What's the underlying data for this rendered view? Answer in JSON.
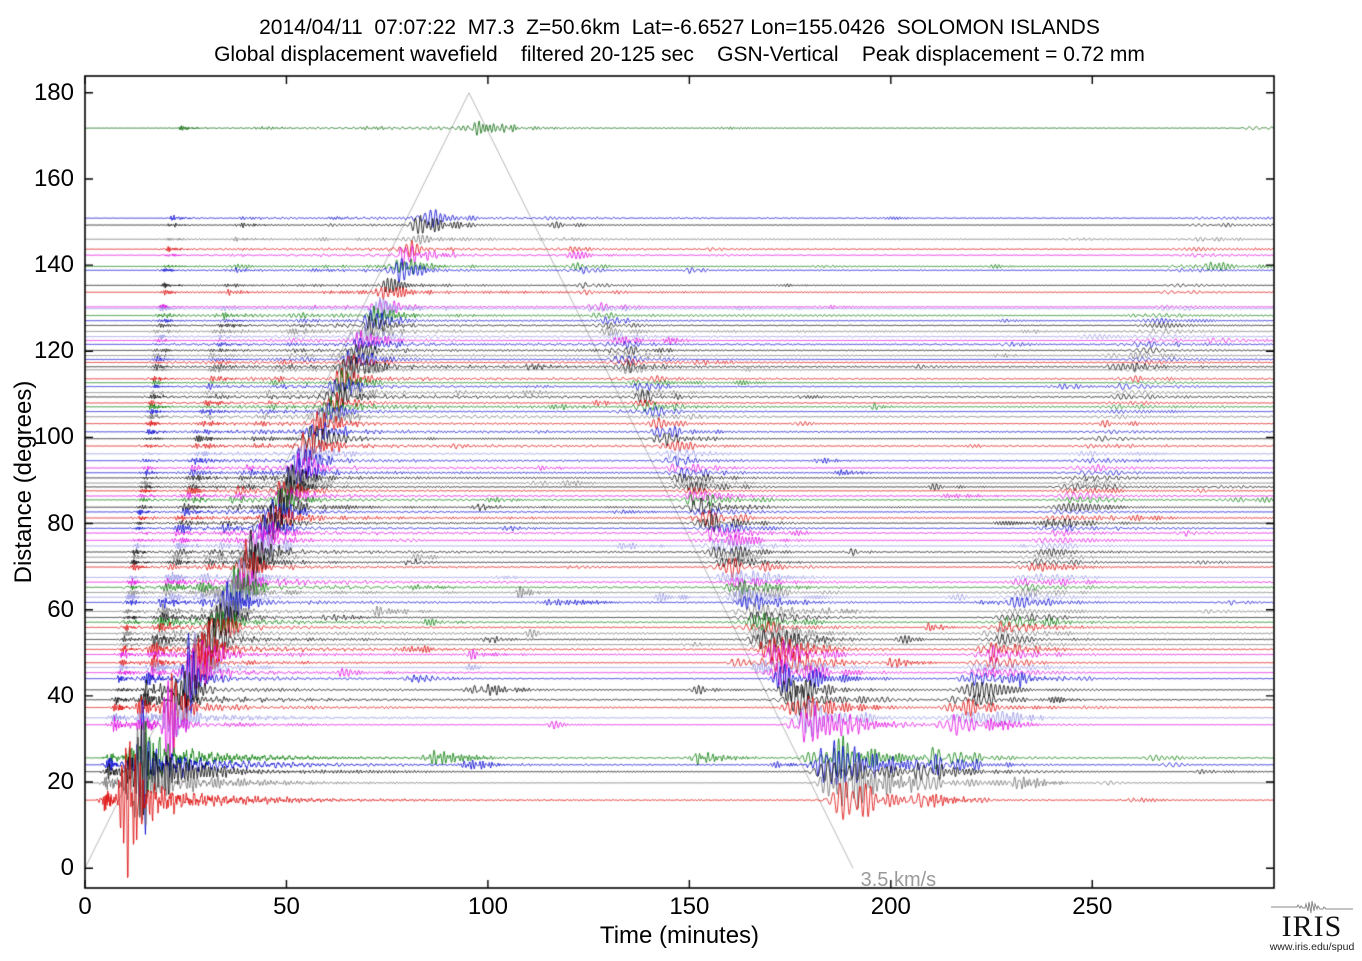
{
  "title": {
    "line1": "2014/04/11  07:07:22  M7.3  Z=50.6km  Lat=-6.6527 Lon=155.0426  SOLOMON ISLANDS",
    "line2": "Global displacement wavefield    filtered 20-125 sec    GSN-Vertical    Peak displacement = 0.72 mm"
  },
  "logo": {
    "text": "IRIS",
    "subtext": "www.iris.edu/spud"
  },
  "chart_data": {
    "type": "line",
    "subtype": "seismic-record-section",
    "title": "Global displacement wavefield record section",
    "xlabel": "Time (minutes)",
    "ylabel": "Distance (degrees)",
    "x_ticks": [
      0,
      50,
      100,
      150,
      200,
      250
    ],
    "y_ticks": [
      0,
      20,
      40,
      60,
      80,
      100,
      120,
      140,
      160,
      180
    ],
    "x_range_minutes": [
      0,
      295.1
    ],
    "y_range_degrees": [
      -4.6,
      183.9
    ],
    "grid": false,
    "event": {
      "date": "2014/04/11",
      "time_utc": "07:07:22",
      "magnitude": "M7.3",
      "depth_km": 50.6,
      "lat": -6.6527,
      "lon": 155.0426,
      "region": "SOLOMON ISLANDS"
    },
    "filter_band_sec": "20-125",
    "component": "GSN-Vertical",
    "peak_displacement_mm": 0.72,
    "moveout_line": {
      "label": "3.5 km/s",
      "velocity_km_per_s": 3.5,
      "km_per_degree": 111.19,
      "vertices_time_distance": [
        [
          0,
          0
        ],
        [
          95.3,
          180
        ],
        [
          190.6,
          0
        ]
      ],
      "color": "#b8b8b8",
      "label_time_min": 192.5,
      "label_distance_deg": -2.8
    },
    "palette": {
      "black": "#000000",
      "red": "#dc0000",
      "blue": "#0000d0",
      "green": "#007a00",
      "dkgreen": "#006400",
      "gray": "#6e6e6e",
      "magenta": "#e000e0",
      "peri": "#9292e4"
    },
    "traces": [
      [
        "dkgreen",
        171.8
      ],
      [
        "blue",
        150.9
      ],
      [
        "black",
        149.3
      ],
      [
        "gray",
        146.0
      ],
      [
        "red",
        143.7
      ],
      [
        "magenta",
        142.3
      ],
      [
        "green",
        139.7
      ],
      [
        "blue",
        138.8
      ],
      [
        "black",
        135.3
      ],
      [
        "red",
        133.7
      ],
      [
        "magenta",
        130.3
      ],
      [
        "peri",
        129.9
      ],
      [
        "green",
        128.3
      ],
      [
        "blue",
        127.1
      ],
      [
        "black",
        126.0
      ],
      [
        "gray",
        124.6
      ],
      [
        "peri",
        123.4
      ],
      [
        "magenta",
        122.5
      ],
      [
        "blue",
        121.6
      ],
      [
        "black",
        120.2
      ],
      [
        "gray",
        119.0
      ],
      [
        "blue",
        118.1
      ],
      [
        "red",
        117.4
      ],
      [
        "black",
        116.4
      ],
      [
        "gray",
        115.7
      ],
      [
        "red",
        113.6
      ],
      [
        "green",
        112.7
      ],
      [
        "blue",
        111.8
      ],
      [
        "gray",
        110.4
      ],
      [
        "black",
        109.4
      ],
      [
        "red",
        108.0
      ],
      [
        "green",
        107.1
      ],
      [
        "blue",
        106.0
      ],
      [
        "gray",
        104.8
      ],
      [
        "red",
        103.2
      ],
      [
        "blue",
        101.3
      ],
      [
        "black",
        99.7
      ],
      [
        "red",
        98.0
      ],
      [
        "peri",
        96.2
      ],
      [
        "blue",
        94.6
      ],
      [
        "magenta",
        92.9
      ],
      [
        "blue",
        91.8
      ],
      [
        "black",
        90.6
      ],
      [
        "gray",
        89.4
      ],
      [
        "black",
        88.5
      ],
      [
        "red",
        87.6
      ],
      [
        "magenta",
        86.4
      ],
      [
        "green",
        85.5
      ],
      [
        "black",
        83.8
      ],
      [
        "blue",
        82.7
      ],
      [
        "red",
        81.3
      ],
      [
        "black",
        80.1
      ],
      [
        "blue",
        78.9
      ],
      [
        "magenta",
        77.8
      ],
      [
        "magenta",
        76.1
      ],
      [
        "peri",
        74.8
      ],
      [
        "black",
        73.4
      ],
      [
        "gray",
        72.2
      ],
      [
        "black",
        71.0
      ],
      [
        "red",
        69.9
      ],
      [
        "peri",
        67.5
      ],
      [
        "magenta",
        66.4
      ],
      [
        "green",
        65.2
      ],
      [
        "gray",
        64.0
      ],
      [
        "peri",
        62.9
      ],
      [
        "blue",
        61.7
      ],
      [
        "gray",
        59.6
      ],
      [
        "black",
        58.2
      ],
      [
        "green",
        57.1
      ],
      [
        "red",
        55.9
      ],
      [
        "gray",
        54.5
      ],
      [
        "black",
        53.1
      ],
      [
        "gray",
        51.9
      ],
      [
        "red",
        50.8
      ],
      [
        "magenta",
        49.6
      ],
      [
        "red",
        47.7
      ],
      [
        "peri",
        46.6
      ],
      [
        "magenta",
        45.4
      ],
      [
        "blue",
        44.0
      ],
      [
        "black",
        41.4
      ],
      [
        "black",
        39.1
      ],
      [
        "red",
        37.3
      ],
      [
        "peri",
        34.9
      ],
      [
        "magenta",
        33.3
      ],
      [
        "green",
        25.6
      ],
      [
        "blue",
        24.0
      ],
      [
        "black",
        22.4
      ],
      [
        "gray",
        19.8
      ],
      [
        "red",
        15.8
      ]
    ]
  }
}
